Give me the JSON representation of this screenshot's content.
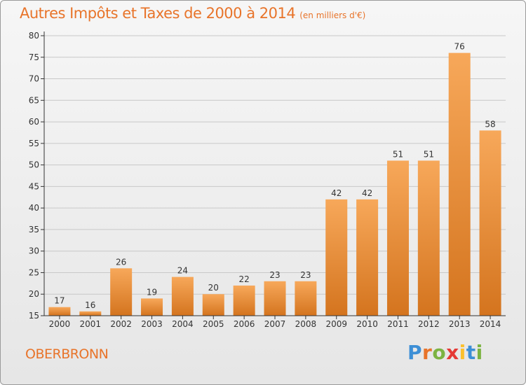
{
  "header": {
    "title": "Autres Impôts et Taxes de 2000 à 2014",
    "subtitle": "(en milliers d'€)"
  },
  "footer": {
    "commune": "OBERBRONN",
    "brand": "Proxiti"
  },
  "colors": {
    "title": "#e8742a",
    "bar_light": "#f7a85a",
    "bar_dark": "#d4741e",
    "grid": "#c8c8c8",
    "axis": "#333333"
  },
  "chart_data": {
    "type": "bar",
    "categories": [
      "2000",
      "2001",
      "2002",
      "2003",
      "2004",
      "2005",
      "2006",
      "2007",
      "2008",
      "2009",
      "2010",
      "2011",
      "2012",
      "2013",
      "2014"
    ],
    "values": [
      17,
      16,
      26,
      19,
      24,
      20,
      22,
      23,
      23,
      42,
      42,
      51,
      51,
      76,
      58
    ],
    "ylim": [
      15,
      80
    ],
    "yticks": [
      15,
      20,
      25,
      30,
      35,
      40,
      45,
      50,
      55,
      60,
      65,
      70,
      75,
      80
    ],
    "grid": true,
    "legend": "none"
  }
}
